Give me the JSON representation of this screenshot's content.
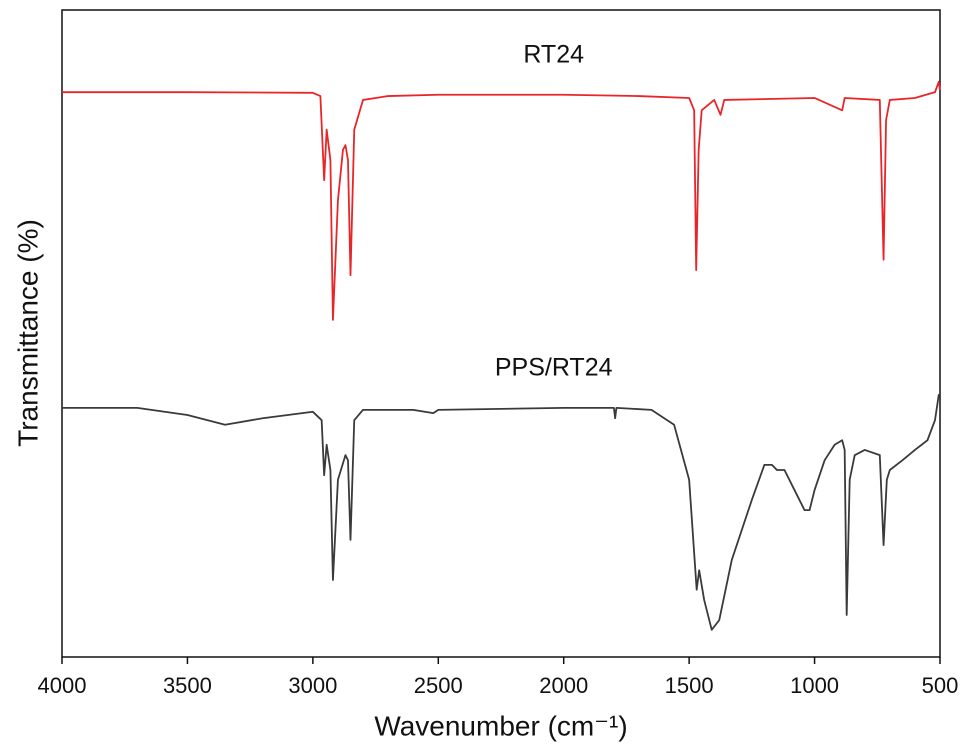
{
  "chart_data": {
    "type": "line",
    "xlabel": "Wavenumber (cm⁻¹)",
    "ylabel": "Transmittance (%)",
    "xlim": [
      4000,
      500
    ],
    "xticks": [
      4000,
      3500,
      3000,
      2500,
      2000,
      1500,
      1000,
      500
    ],
    "ylim": [
      0,
      100
    ],
    "series": [
      {
        "name": "RT24",
        "color": "#e8262a",
        "x": [
          4000,
          3500,
          3000,
          2970,
          2955,
          2945,
          2930,
          2920,
          2900,
          2880,
          2870,
          2860,
          2850,
          2835,
          2800,
          2700,
          2500,
          2000,
          1700,
          1500,
          1480,
          1472,
          1462,
          1450,
          1400,
          1375,
          1360,
          1000,
          890,
          880,
          740,
          725,
          715,
          700,
          600,
          520,
          505,
          500
        ],
        "values": [
          87.3,
          87.3,
          87.2,
          86.7,
          73.7,
          81.5,
          76.8,
          52.1,
          70.6,
          78.4,
          79.1,
          76.8,
          59.0,
          81.5,
          86.1,
          86.7,
          86.9,
          86.9,
          86.7,
          86.4,
          84.5,
          59.8,
          78.4,
          84.5,
          86.1,
          83.8,
          86.1,
          86.4,
          84.5,
          86.4,
          86.1,
          61.4,
          83.0,
          86.1,
          86.4,
          87.3,
          88.9,
          87.6
        ]
      },
      {
        "name": "PPS/RT24",
        "color": "#3a3a3a",
        "x": [
          4000,
          3700,
          3500,
          3350,
          3200,
          3000,
          2965,
          2955,
          2945,
          2930,
          2920,
          2900,
          2870,
          2860,
          2850,
          2835,
          2800,
          2600,
          2520,
          2500,
          2000,
          1800,
          1795,
          1790,
          1650,
          1560,
          1500,
          1470,
          1460,
          1440,
          1410,
          1380,
          1330,
          1250,
          1200,
          1170,
          1150,
          1120,
          1080,
          1040,
          1020,
          1000,
          960,
          920,
          890,
          880,
          872,
          860,
          840,
          800,
          740,
          725,
          712,
          700,
          650,
          600,
          550,
          520,
          505,
          500
        ],
        "values": [
          38.5,
          38.5,
          37.4,
          35.9,
          36.9,
          37.9,
          36.6,
          28.1,
          32.8,
          28.9,
          11.9,
          27.4,
          31.2,
          30.4,
          18.1,
          36.6,
          38.2,
          38.2,
          37.7,
          38.2,
          38.5,
          38.5,
          36.9,
          38.5,
          38.2,
          35.9,
          27.4,
          10.4,
          13.4,
          8.8,
          4.2,
          5.7,
          15.0,
          24.3,
          29.7,
          29.7,
          28.9,
          28.9,
          25.8,
          22.7,
          22.7,
          25.8,
          30.4,
          32.8,
          33.5,
          32.0,
          6.5,
          27.4,
          31.2,
          32.0,
          31.2,
          17.3,
          27.4,
          28.9,
          30.4,
          32.0,
          33.5,
          36.6,
          40.5,
          40.5
        ]
      }
    ]
  }
}
